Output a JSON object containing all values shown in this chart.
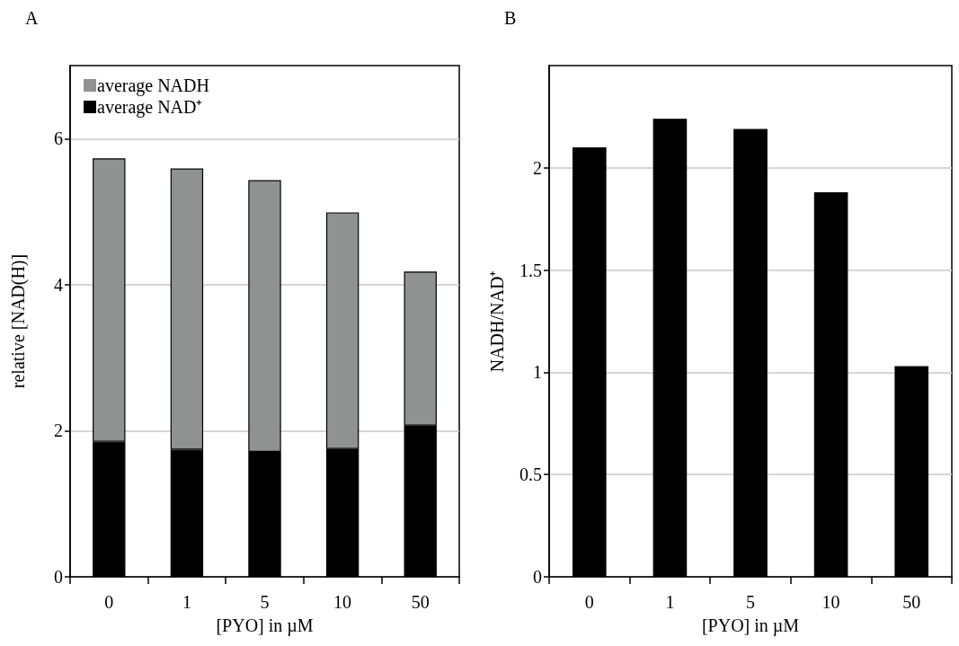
{
  "chart_data": [
    {
      "type": "bar",
      "annotations": [
        "A"
      ],
      "xlabel": "[PYO] in µM",
      "ylabel": "relative [NAD(H)]",
      "categories": [
        "0",
        "1",
        "5",
        "10",
        "50"
      ],
      "stacked": true,
      "series": [
        {
          "name": "average NAD⁺",
          "color": "#000000",
          "values": [
            1.85,
            1.74,
            1.71,
            1.75,
            2.07
          ]
        },
        {
          "name": "average NADH",
          "color": "#8e9290",
          "values": [
            3.88,
            3.85,
            3.72,
            3.24,
            2.11
          ]
        }
      ],
      "ylim": [
        0,
        7
      ],
      "yticks": [
        0,
        2,
        4,
        6
      ],
      "grid": "y",
      "legend": "top left"
    },
    {
      "type": "bar",
      "annotations": [
        "B"
      ],
      "xlabel": "[PYO] in µM",
      "ylabel": "NADH/NAD⁺",
      "categories": [
        "0",
        "1",
        "5",
        "10",
        "50"
      ],
      "series": [
        {
          "color": "#000000",
          "values": [
            2.1,
            2.24,
            2.19,
            1.88,
            1.03
          ]
        }
      ],
      "ylim": [
        0,
        2.5
      ],
      "yticks": [
        0,
        0.5,
        1,
        1.5,
        2
      ],
      "grid": "y"
    }
  ]
}
